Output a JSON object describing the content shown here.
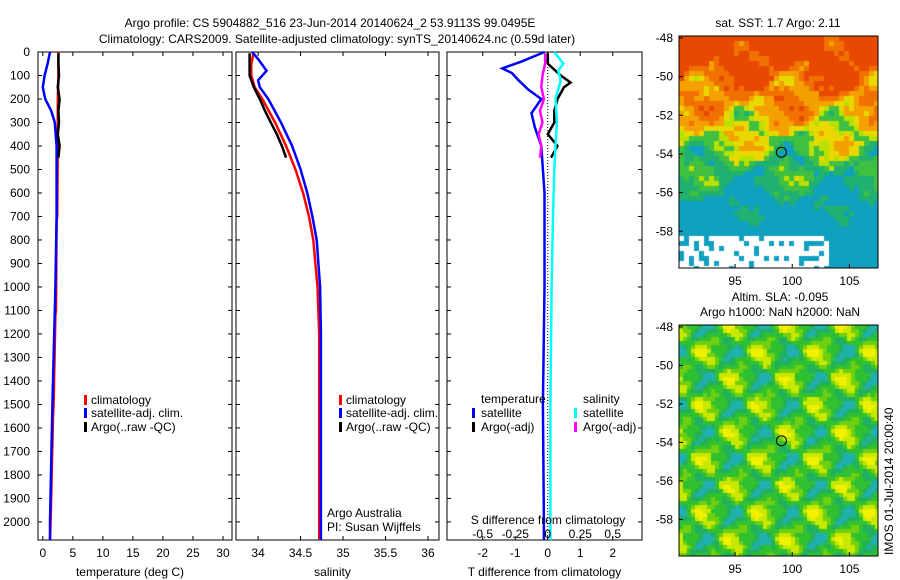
{
  "title_line1": "Argo profile: CS 5904882_516 23-Jun-2014 20140624_2 53.9113S 99.0495E",
  "title_line2": "Climatology: CARS2009. Satellite-adjusted climatology: synTS_20140624.nc (0.59d later)",
  "colors": {
    "climatology": "#ff0000",
    "satellite": "#0000ff",
    "argo": "#000000",
    "sal_satellite": "#00ffff",
    "sal_argo": "#ff00ff"
  },
  "chart_data": [
    {
      "type": "line",
      "id": "temperature",
      "xlabel": "temperature (deg C)",
      "xlim": [
        -0.8,
        31.5
      ],
      "ylim": [
        2077,
        0
      ],
      "xticks": [
        0,
        5,
        10,
        15,
        20,
        25,
        30
      ],
      "yticks": [
        0,
        100,
        200,
        300,
        400,
        500,
        600,
        700,
        800,
        900,
        1000,
        1100,
        1200,
        1300,
        1400,
        1500,
        1600,
        1700,
        1800,
        1900,
        2000
      ],
      "legend": [
        "climatology",
        "satellite-adj. clim.",
        "Argo(..raw -QC)"
      ],
      "series": [
        {
          "name": "climatology",
          "color": "#ff0000",
          "depth": [
            0,
            100,
            200,
            300,
            400,
            700,
            720,
            1100,
            1120,
            1500,
            1550,
            2000,
            2077
          ],
          "values": [
            2.6,
            2.6,
            2.5,
            2.5,
            2.5,
            2.4,
            2.3,
            2.2,
            2.1,
            1.8,
            1.7,
            1.3,
            1.2
          ]
        },
        {
          "name": "satellite-adj. clim.",
          "color": "#0000ff",
          "depth": [
            0,
            50,
            100,
            150,
            200,
            250,
            300,
            400,
            700,
            1000,
            1500,
            2000,
            2077
          ],
          "values": [
            1.2,
            0.8,
            0.3,
            0.0,
            0.4,
            1.4,
            2.0,
            2.3,
            2.3,
            2.1,
            1.6,
            1.2,
            1.2
          ]
        },
        {
          "name": "Argo(..raw -QC)",
          "color": "#000000",
          "depth": [
            5,
            50,
            100,
            150,
            200,
            250,
            300,
            350,
            400,
            450
          ],
          "values": [
            2.6,
            2.6,
            2.7,
            2.5,
            2.8,
            2.6,
            2.7,
            2.5,
            2.8,
            2.6
          ]
        }
      ]
    },
    {
      "type": "line",
      "id": "salinity",
      "xlabel": "salinity",
      "xlim": [
        33.74,
        36.13
      ],
      "ylim": [
        2077,
        0
      ],
      "xticks": [
        34,
        34.5,
        35,
        35.5,
        36
      ],
      "legend": [
        "climatology",
        "satellite-adj. clim.",
        "Argo(..raw -QC)"
      ],
      "annotation": [
        "Argo Australia",
        "PI: Susan Wijffels"
      ],
      "series": [
        {
          "name": "climatology",
          "color": "#ff0000",
          "depth": [
            0,
            50,
            100,
            150,
            200,
            300,
            400,
            500,
            600,
            700,
            800,
            1000,
            1200,
            1500,
            2000,
            2077
          ],
          "values": [
            33.95,
            33.92,
            33.92,
            33.96,
            34.05,
            34.2,
            34.33,
            34.44,
            34.53,
            34.6,
            34.65,
            34.7,
            34.72,
            34.72,
            34.72,
            34.72
          ]
        },
        {
          "name": "satellite-adj. clim.",
          "color": "#0000ff",
          "depth": [
            0,
            30,
            80,
            120,
            150,
            200,
            300,
            400,
            500,
            600,
            700,
            800,
            1000,
            1200,
            1500,
            2000,
            2077
          ],
          "values": [
            33.93,
            34.0,
            34.1,
            34.0,
            34.02,
            34.12,
            34.27,
            34.4,
            34.5,
            34.58,
            34.64,
            34.69,
            34.73,
            34.74,
            34.74,
            34.74,
            34.74
          ]
        },
        {
          "name": "Argo(..raw -QC)",
          "color": "#000000",
          "depth": [
            5,
            50,
            100,
            150,
            200,
            250,
            300,
            350,
            400,
            450
          ],
          "values": [
            33.9,
            33.9,
            33.9,
            33.95,
            34.02,
            34.08,
            34.15,
            34.22,
            34.28,
            34.33
          ]
        }
      ]
    },
    {
      "type": "line",
      "id": "differences",
      "xlabel": "T difference from climatology",
      "xlabel_top": "S difference from climatology",
      "xlim": [
        -3.1,
        2.9
      ],
      "xticks": [
        -2,
        -1,
        0,
        1,
        2
      ],
      "xticks_top": [
        -0.5,
        -0.25,
        0,
        0.25,
        0.5
      ],
      "xticks_top_labels": [
        "-0.5",
        "-0.25",
        "0",
        "0.25",
        "0.5"
      ],
      "legend_headers": [
        "temperature",
        "salinity"
      ],
      "legend": [
        "satellite",
        "Argo(-adj)",
        "satellite",
        "Argo(-adj)"
      ],
      "series": [
        {
          "name": "T satellite",
          "axis": "T",
          "color": "#0000ff",
          "depth": [
            0,
            40,
            70,
            90,
            120,
            160,
            200,
            260,
            320,
            400,
            600,
            1000,
            1500,
            2000,
            2077
          ],
          "values": [
            -0.1,
            -0.8,
            -1.4,
            -1.1,
            -0.9,
            -0.6,
            -0.2,
            -0.5,
            -0.4,
            -0.2,
            -0.1,
            -0.1,
            -0.15,
            -0.12,
            -0.12
          ]
        },
        {
          "name": "T Argo(-adj)",
          "axis": "T",
          "color": "#000000",
          "depth": [
            5,
            50,
            100,
            130,
            150,
            200,
            250,
            300,
            350,
            400,
            450
          ],
          "values": [
            0.0,
            0.0,
            0.4,
            0.7,
            0.5,
            0.3,
            0.2,
            0.2,
            0.0,
            0.3,
            0.1
          ]
        },
        {
          "name": "S satellite",
          "axis": "S",
          "color": "#00ffff",
          "depth": [
            0,
            50,
            80,
            120,
            200,
            300,
            400,
            500,
            700,
            1000,
            1500,
            2000,
            2077
          ],
          "values": [
            0.05,
            0.12,
            0.08,
            0.1,
            0.06,
            0.07,
            0.06,
            0.05,
            0.04,
            0.03,
            0.02,
            0.02,
            0.02
          ]
        },
        {
          "name": "S Argo(-adj)",
          "axis": "S",
          "color": "#ff00ff",
          "depth": [
            5,
            50,
            100,
            150,
            200,
            250,
            300,
            350,
            400,
            450
          ],
          "values": [
            -0.02,
            -0.02,
            -0.04,
            -0.05,
            -0.03,
            -0.06,
            -0.04,
            -0.07,
            -0.05,
            -0.06
          ]
        }
      ]
    },
    {
      "type": "heatmap",
      "id": "sst-map",
      "title": "sat. SST: 1.7 Argo: 2.11",
      "xlim": [
        90.1,
        107.5
      ],
      "ylim": [
        -59.9,
        -47.9
      ],
      "xticks": [
        95,
        100,
        105
      ],
      "yticks": [
        -48,
        -50,
        -52,
        -54,
        -56,
        -58
      ],
      "marker": {
        "lon": 99.05,
        "lat": -53.91
      }
    },
    {
      "type": "heatmap",
      "id": "sla-map",
      "title_line1": "Altim. SLA: -0.095",
      "title_line2": "Argo h1000: NaN h2000: NaN",
      "side_label": "IMOS 01-Jul-2014 20:00:40",
      "xlim": [
        90.1,
        107.5
      ],
      "ylim": [
        -59.9,
        -47.9
      ],
      "xticks": [
        95,
        100,
        105
      ],
      "yticks": [
        -48,
        -50,
        -52,
        -54,
        -56,
        -58
      ],
      "marker": {
        "lon": 99.05,
        "lat": -53.91
      }
    }
  ]
}
